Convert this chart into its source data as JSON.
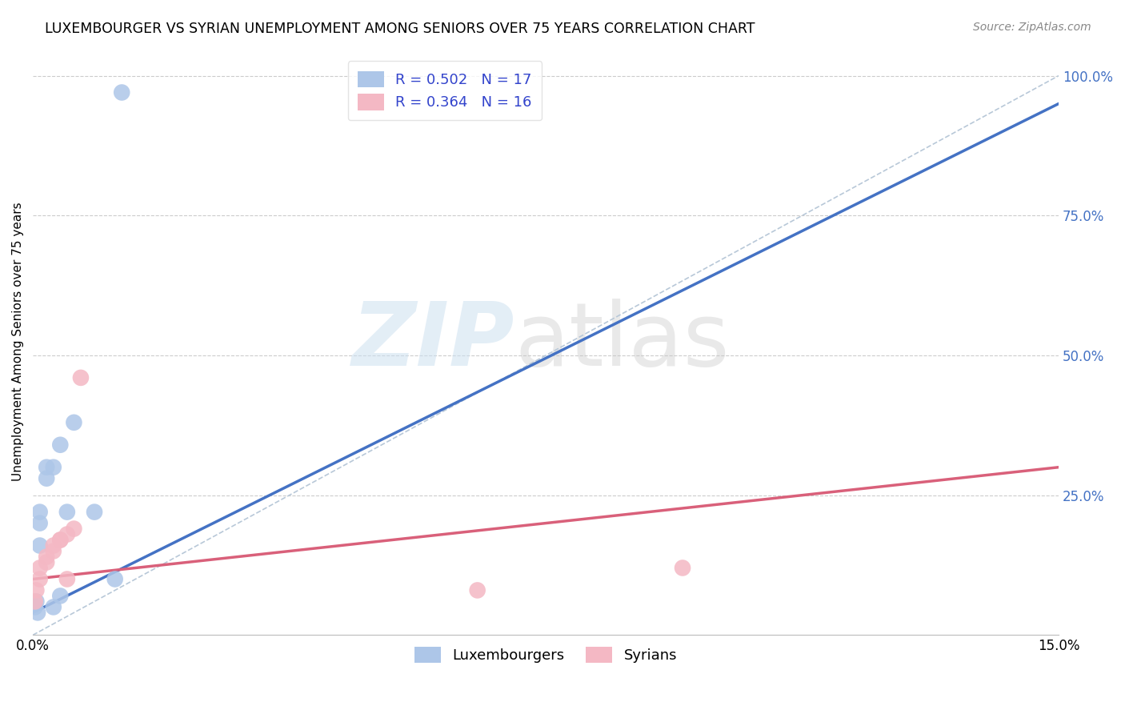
{
  "title": "LUXEMBOURGER VS SYRIAN UNEMPLOYMENT AMONG SENIORS OVER 75 YEARS CORRELATION CHART",
  "source": "Source: ZipAtlas.com",
  "ylabel": "Unemployment Among Seniors over 75 years",
  "x_min": 0.0,
  "x_max": 0.15,
  "y_min": 0.0,
  "y_max": 1.05,
  "lux_r": 0.502,
  "lux_n": 17,
  "syr_r": 0.364,
  "syr_n": 16,
  "lux_color": "#adc6e8",
  "syr_color": "#f4b8c4",
  "lux_line_color": "#4472c4",
  "syr_line_color": "#d9607a",
  "diagonal_color": "#b8c8d8",
  "lux_points_x": [
    0.0003,
    0.0005,
    0.0007,
    0.001,
    0.001,
    0.001,
    0.002,
    0.002,
    0.003,
    0.003,
    0.004,
    0.004,
    0.005,
    0.006,
    0.009,
    0.012,
    0.013
  ],
  "lux_points_y": [
    0.05,
    0.06,
    0.04,
    0.16,
    0.2,
    0.22,
    0.28,
    0.3,
    0.3,
    0.05,
    0.07,
    0.34,
    0.22,
    0.38,
    0.22,
    0.1,
    0.97
  ],
  "syr_points_x": [
    0.0003,
    0.0005,
    0.001,
    0.001,
    0.002,
    0.002,
    0.003,
    0.003,
    0.004,
    0.004,
    0.005,
    0.005,
    0.006,
    0.007,
    0.065,
    0.095
  ],
  "syr_points_y": [
    0.06,
    0.08,
    0.1,
    0.12,
    0.13,
    0.14,
    0.15,
    0.16,
    0.17,
    0.17,
    0.1,
    0.18,
    0.19,
    0.46,
    0.08,
    0.12
  ],
  "lux_line_x0": 0.0,
  "lux_line_y0": 0.04,
  "lux_line_x1": 0.15,
  "lux_line_y1": 0.95,
  "syr_line_x0": 0.0,
  "syr_line_y0": 0.1,
  "syr_line_x1": 0.15,
  "syr_line_y1": 0.3
}
